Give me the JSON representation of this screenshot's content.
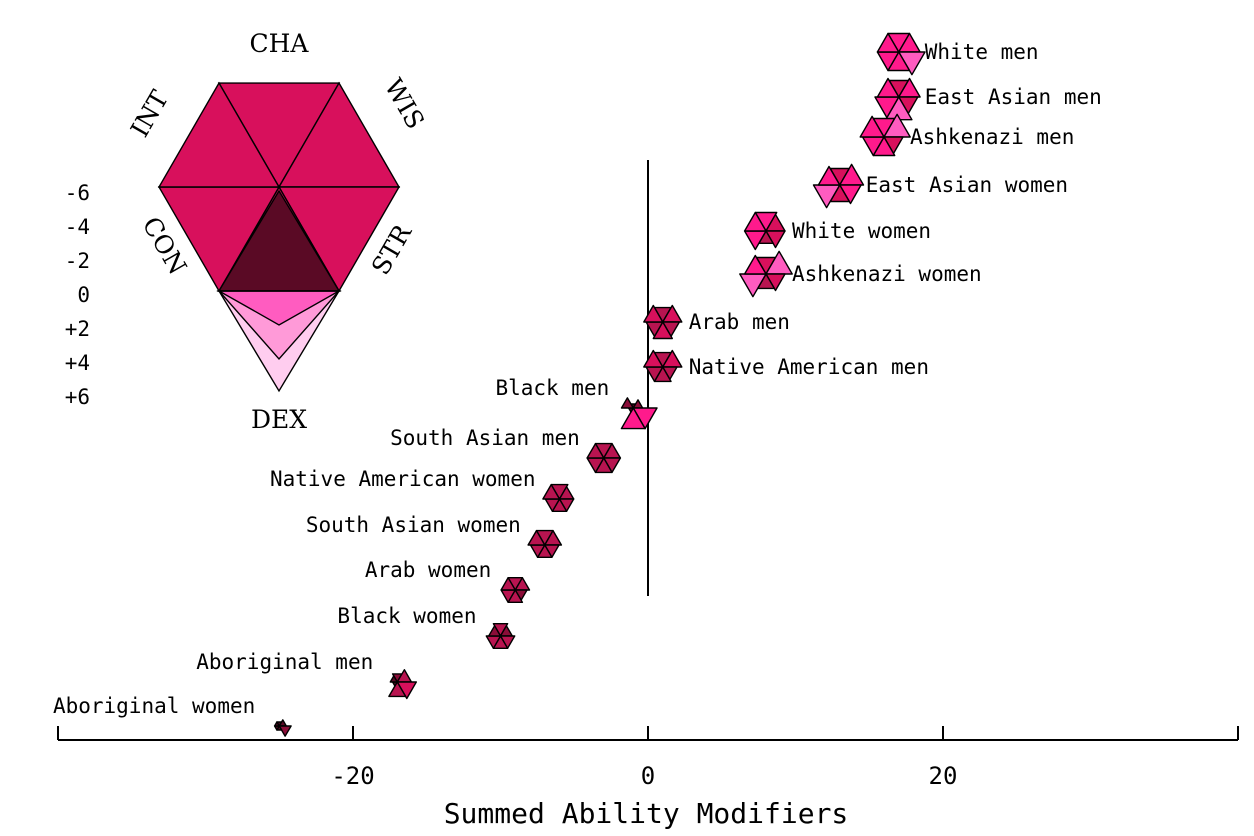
{
  "chart_data": {
    "type": "scatter",
    "marker": "star-glyph (radial wedges per ability)",
    "xlabel": "Summed Ability Modifiers",
    "ylabel": "",
    "xlim": [
      -40,
      40
    ],
    "xticks": [
      "-20",
      "0",
      "20"
    ],
    "xtick_values": [
      -20,
      0,
      20
    ],
    "reference_line_x": 0,
    "grid": false,
    "abilities": [
      "CHA",
      "WIS",
      "STR",
      "DEX",
      "CON",
      "INT"
    ],
    "key": {
      "axis_labels": [
        "CHA",
        "WIS",
        "STR",
        "DEX",
        "CON",
        "INT"
      ],
      "scale_labels": [
        "-6",
        "-4",
        "-2",
        "0",
        "+2",
        "+4",
        "+6"
      ],
      "scale_values": [
        -6,
        -4,
        -2,
        0,
        2,
        4,
        6
      ],
      "scale_colors": [
        "#5a0a25",
        "#8a0d38",
        "#b81450",
        "#ff1a8c",
        "#ff5cc0",
        "#ff9ad8",
        "#ffcdef"
      ]
    },
    "points": [
      {
        "label": "White men",
        "x": 17,
        "abilities": [
          1,
          1,
          3,
          1,
          1,
          1
        ]
      },
      {
        "label": "East Asian men",
        "x": 17,
        "abilities": [
          0,
          1,
          0,
          3,
          2,
          1
        ]
      },
      {
        "label": "Ashkenazi men",
        "x": 16,
        "abilities": [
          1,
          3,
          0,
          1,
          1,
          2
        ]
      },
      {
        "label": "East Asian women",
        "x": 13,
        "abilities": [
          0,
          2,
          1,
          0,
          3,
          1
        ]
      },
      {
        "label": "White women",
        "x": 8,
        "abilities": [
          1,
          0,
          0,
          -2,
          1,
          1
        ]
      },
      {
        "label": "Ashkenazi women",
        "x": 8,
        "abilities": [
          0,
          3,
          0,
          -1,
          3,
          1
        ]
      },
      {
        "label": "Arab men",
        "x": 1,
        "abilities": [
          -1,
          0,
          -1,
          0,
          -1,
          0
        ]
      },
      {
        "label": "Native American men",
        "x": 1,
        "abilities": [
          -1,
          0,
          -2,
          -1,
          -1,
          0
        ]
      },
      {
        "label": "Black men",
        "x": -1,
        "abilities": [
          -6,
          -4,
          2,
          2,
          -6,
          -3
        ]
      },
      {
        "label": "South Asian men",
        "x": -3,
        "abilities": [
          -1,
          -1,
          -1,
          -1,
          -1,
          -1
        ]
      },
      {
        "label": "Native American women",
        "x": -6,
        "abilities": [
          -1,
          -2,
          -2,
          -2,
          -2,
          -1
        ]
      },
      {
        "label": "South Asian women",
        "x": -7,
        "abilities": [
          -1,
          -1,
          -2,
          -2,
          -2,
          -1
        ]
      },
      {
        "label": "Arab women",
        "x": -9,
        "abilities": [
          -2,
          -2,
          -3,
          -2,
          -2,
          -2
        ]
      },
      {
        "label": "Black women",
        "x": -10,
        "abilities": [
          -2,
          -3,
          -2,
          -2,
          -2,
          -3
        ]
      },
      {
        "label": "Aboriginal men",
        "x": -17,
        "abilities": [
          -4,
          -2,
          0,
          -1,
          -6,
          -5
        ]
      },
      {
        "label": "Aboriginal women",
        "x": -25,
        "abilities": [
          -6,
          -5,
          -3,
          -6,
          -6,
          -6
        ]
      }
    ]
  }
}
